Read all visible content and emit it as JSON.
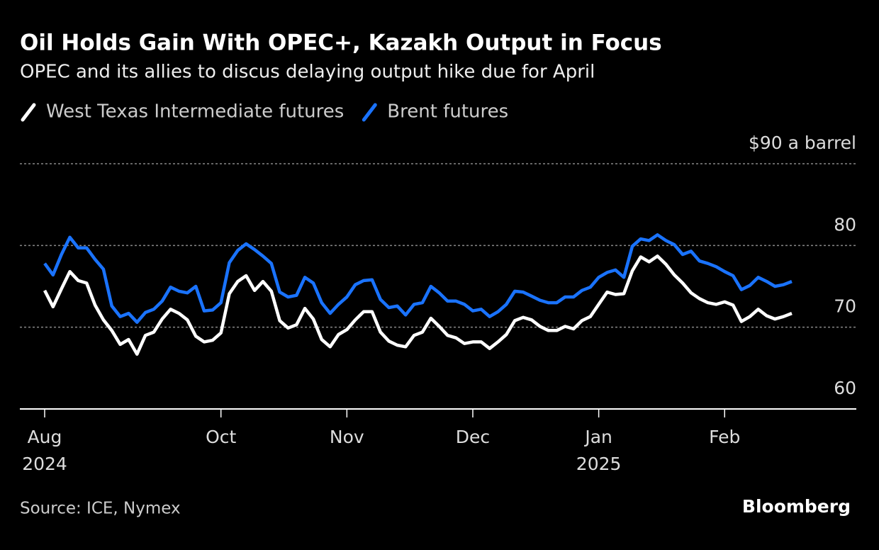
{
  "chart_data": {
    "type": "line",
    "title": "Oil Holds Gain With OPEC+, Kazakh Output in Focus",
    "subtitle": "OPEC and its allies to discus delaying output hike due for April",
    "source": "Source: ICE, Nymex",
    "brand": "Bloomberg",
    "categories": [
      "Aug 2024",
      null,
      null,
      null,
      null,
      null,
      null,
      null,
      null,
      null,
      null,
      null,
      null,
      null,
      null,
      null,
      null,
      null,
      null,
      null,
      null,
      "Oct",
      null,
      null,
      null,
      null,
      null,
      null,
      null,
      null,
      null,
      null,
      null,
      null,
      null,
      null,
      "Nov",
      null,
      null,
      null,
      null,
      null,
      null,
      null,
      null,
      null,
      null,
      null,
      null,
      null,
      null,
      "Dec",
      null,
      null,
      null,
      null,
      null,
      null,
      null,
      null,
      null,
      null,
      null,
      null,
      null,
      null,
      "Jan 2025",
      null,
      null,
      null,
      null,
      null,
      null,
      null,
      null,
      null,
      null,
      null,
      null,
      null,
      null,
      "Feb",
      null,
      null,
      null,
      null,
      null,
      null,
      null,
      null
    ],
    "series": [
      {
        "name": "West Texas Intermediate futures",
        "color": "#ffffff",
        "values": [
          74.5,
          72.5,
          74.7,
          76.8,
          75.7,
          75.4,
          72.7,
          70.9,
          69.6,
          67.9,
          68.5,
          66.7,
          69.0,
          69.4,
          71.0,
          72.2,
          71.7,
          70.9,
          68.9,
          68.2,
          68.4,
          69.3,
          74.1,
          75.6,
          76.3,
          74.5,
          75.6,
          74.4,
          70.8,
          69.9,
          70.3,
          72.3,
          71.0,
          68.5,
          67.6,
          69.1,
          69.7,
          70.9,
          71.9,
          71.9,
          69.4,
          68.3,
          67.8,
          67.6,
          69.0,
          69.4,
          71.1,
          70.1,
          69.0,
          68.7,
          68.0,
          68.2,
          68.2,
          67.4,
          68.2,
          69.1,
          70.8,
          71.2,
          70.9,
          70.1,
          69.6,
          69.6,
          70.1,
          69.8,
          70.8,
          71.3,
          72.8,
          74.3,
          74.0,
          74.1,
          76.9,
          78.6,
          78.0,
          78.7,
          77.7,
          76.4,
          75.4,
          74.2,
          73.5,
          73.0,
          72.8,
          73.1,
          72.7,
          70.7,
          71.3,
          72.2,
          71.4,
          71.0,
          71.3,
          71.7
        ]
      },
      {
        "name": "Brent futures",
        "color": "#1a73ff",
        "values": [
          77.8,
          76.4,
          78.9,
          81.0,
          79.7,
          79.7,
          78.3,
          77.1,
          72.6,
          71.3,
          71.7,
          70.6,
          71.8,
          72.2,
          73.2,
          74.9,
          74.4,
          74.2,
          75.0,
          72.0,
          72.1,
          73.0,
          77.9,
          79.4,
          80.2,
          79.5,
          78.7,
          77.8,
          74.3,
          73.7,
          73.9,
          76.1,
          75.4,
          73.0,
          71.7,
          72.8,
          73.7,
          75.2,
          75.7,
          75.8,
          73.4,
          72.4,
          72.6,
          71.5,
          72.8,
          73.0,
          75.0,
          74.2,
          73.2,
          73.2,
          72.8,
          72.0,
          72.2,
          71.3,
          71.9,
          72.8,
          74.4,
          74.3,
          73.8,
          73.3,
          73.0,
          73.0,
          73.7,
          73.7,
          74.5,
          74.9,
          76.1,
          76.7,
          77.0,
          76.1,
          79.9,
          80.8,
          80.6,
          81.3,
          80.6,
          80.1,
          78.9,
          79.3,
          78.1,
          77.8,
          77.4,
          76.8,
          76.3,
          74.6,
          75.1,
          76.1,
          75.6,
          75.0,
          75.2,
          75.6
        ]
      }
    ],
    "ylim": [
      60,
      90
    ],
    "yticks": [
      60,
      70,
      80,
      {
        "value": 90,
        "label": "$90 a barrel"
      }
    ],
    "grid": true
  }
}
